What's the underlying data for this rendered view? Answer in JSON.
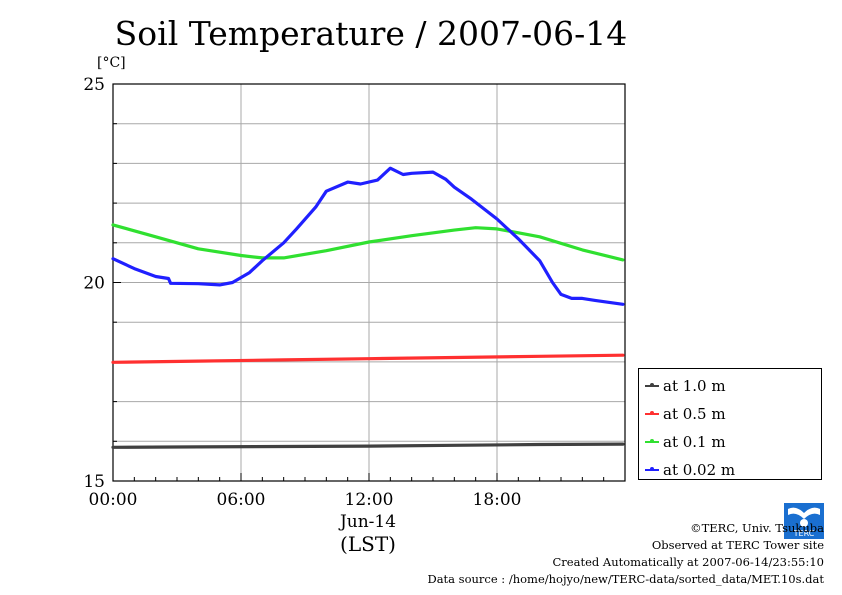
{
  "page": {
    "title": "Soil Temperature / 2007-06-14",
    "unit_label": "[°C]",
    "x_date_label": "Jun-14",
    "x_zone_label": "(LST)",
    "credits": [
      "©TERC, Univ. Tsukuba",
      "Observed at TERC Tower site",
      "Created Automatically at 2007-06-14/23:55:10",
      "Data source : /home/hojyo/new/TERC-data/sorted_data/MET.10s.dat"
    ],
    "logo_text": "TERC"
  },
  "chart_data": {
    "type": "line",
    "title": "Soil Temperature / 2007-06-14",
    "xlabel": "(LST)",
    "ylabel": "[°C]",
    "x_unit": "hour of day",
    "xlim": [
      0,
      24
    ],
    "ylim": [
      15,
      25
    ],
    "x_ticks": [
      0,
      6,
      12,
      18
    ],
    "x_tick_labels": [
      "00:00",
      "06:00",
      "12:00",
      "18:00"
    ],
    "y_ticks": [
      15,
      20,
      25
    ],
    "y_tick_labels": [
      "15",
      "20",
      "25"
    ],
    "grid": true,
    "legend_position": "bottom-right, outside plot",
    "series": [
      {
        "name": "at 1.0 m",
        "color": "#404040",
        "x": [
          0,
          4,
          8,
          12,
          16,
          20,
          23.9
        ],
        "values": [
          15.85,
          15.86,
          15.87,
          15.88,
          15.9,
          15.92,
          15.93
        ]
      },
      {
        "name": "at 0.5 m",
        "color": "#ff3030",
        "x": [
          0,
          4,
          8,
          12,
          16,
          20,
          23.9
        ],
        "values": [
          17.99,
          18.02,
          18.05,
          18.08,
          18.11,
          18.14,
          18.17
        ]
      },
      {
        "name": "at 0.1 m",
        "color": "#30e030",
        "x": [
          0,
          2,
          4,
          6,
          7,
          8,
          10,
          12,
          14,
          16,
          17,
          18,
          20,
          22,
          23.9
        ],
        "values": [
          21.45,
          21.15,
          20.85,
          20.68,
          20.62,
          20.62,
          20.8,
          21.02,
          21.18,
          21.32,
          21.38,
          21.35,
          21.15,
          20.82,
          20.57
        ]
      },
      {
        "name": "at 0.02 m",
        "color": "#2020ff",
        "x": [
          0,
          1,
          2,
          2.6,
          2.7,
          4,
          5,
          5.6,
          6.4,
          7,
          8,
          8.6,
          9.5,
          10,
          11,
          11.6,
          12.4,
          13,
          13.6,
          14,
          15,
          15.6,
          16,
          16.8,
          18,
          19,
          20,
          20.6,
          21,
          21.5,
          22,
          22.6,
          23.9
        ],
        "values": [
          20.6,
          20.35,
          20.15,
          20.1,
          19.98,
          19.97,
          19.94,
          20.0,
          20.25,
          20.55,
          21.0,
          21.35,
          21.9,
          22.3,
          22.53,
          22.48,
          22.58,
          22.88,
          22.72,
          22.75,
          22.78,
          22.6,
          22.4,
          22.1,
          21.6,
          21.1,
          20.55,
          20.0,
          19.7,
          19.6,
          19.6,
          19.55,
          19.45
        ]
      }
    ]
  }
}
